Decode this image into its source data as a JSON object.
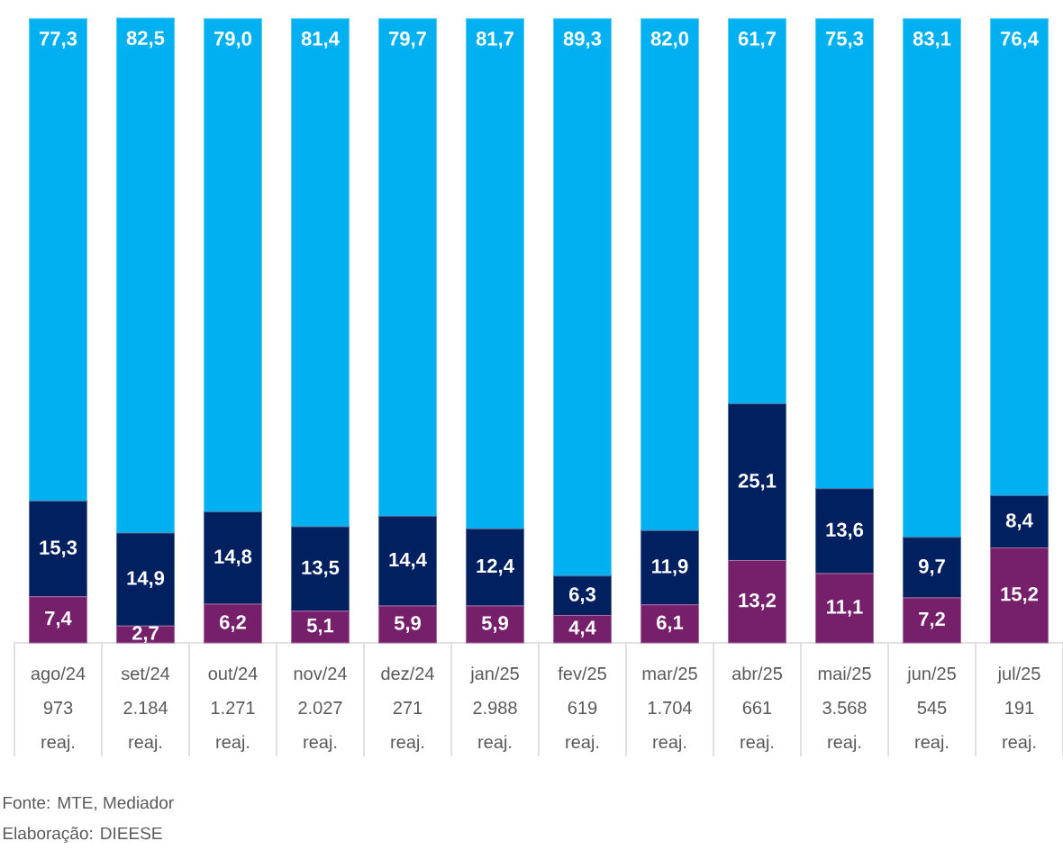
{
  "chart_data": {
    "type": "bar",
    "stacked": true,
    "tick_labels": "x",
    "categories": [
      "ago/24 973 reaj.",
      "set/24 2.184 reaj.",
      "out/24 1.271 reaj.",
      "nov/24 2.027 reaj.",
      "dez/24 271 reaj.",
      "jan/25 2.988 reaj.",
      "fev/25 619 reaj.",
      "mar/25 1.704 reaj.",
      "abr/25 661 reaj.",
      "mai/25 3.568 reaj.",
      "jun/25 545 reaj.",
      "jul/25 191 reaj."
    ],
    "series": [
      {
        "color": "#761f6b",
        "values": [
          7.4,
          2.7,
          6.2,
          5.1,
          5.9,
          5.9,
          4.4,
          6.1,
          13.2,
          11.1,
          7.2,
          15.2
        ],
        "value_labels": [
          "7,4",
          "2,7",
          "6,2",
          "5,1",
          "5,9",
          "5,9",
          "4,4",
          "6,1",
          "13,2",
          "11,1",
          "7,2",
          "15,2"
        ]
      },
      {
        "color": "#002060",
        "values": [
          15.3,
          14.9,
          14.8,
          13.5,
          14.4,
          12.4,
          6.3,
          11.9,
          25.1,
          13.6,
          9.7,
          8.4
        ],
        "value_labels": [
          "15,3",
          "14,9",
          "14,8",
          "13,5",
          "14,4",
          "12,4",
          "6,3",
          "11,9",
          "25,1",
          "13,6",
          "9,7",
          "8,4"
        ]
      },
      {
        "color": "#00b0f0",
        "values": [
          77.3,
          82.5,
          79.0,
          81.4,
          79.7,
          81.7,
          89.3,
          82.0,
          61.7,
          75.3,
          83.1,
          76.4
        ],
        "value_labels": [
          "77,3",
          "82,5",
          "79,0",
          "81,4",
          "79,7",
          "81,7",
          "89,3",
          "82,0",
          "61,7",
          "75,3",
          "83,1",
          "76,4"
        ]
      }
    ],
    "annotations": [
      "Fonte: MTE, Mediador",
      "Elaboração: DIEESE"
    ]
  }
}
